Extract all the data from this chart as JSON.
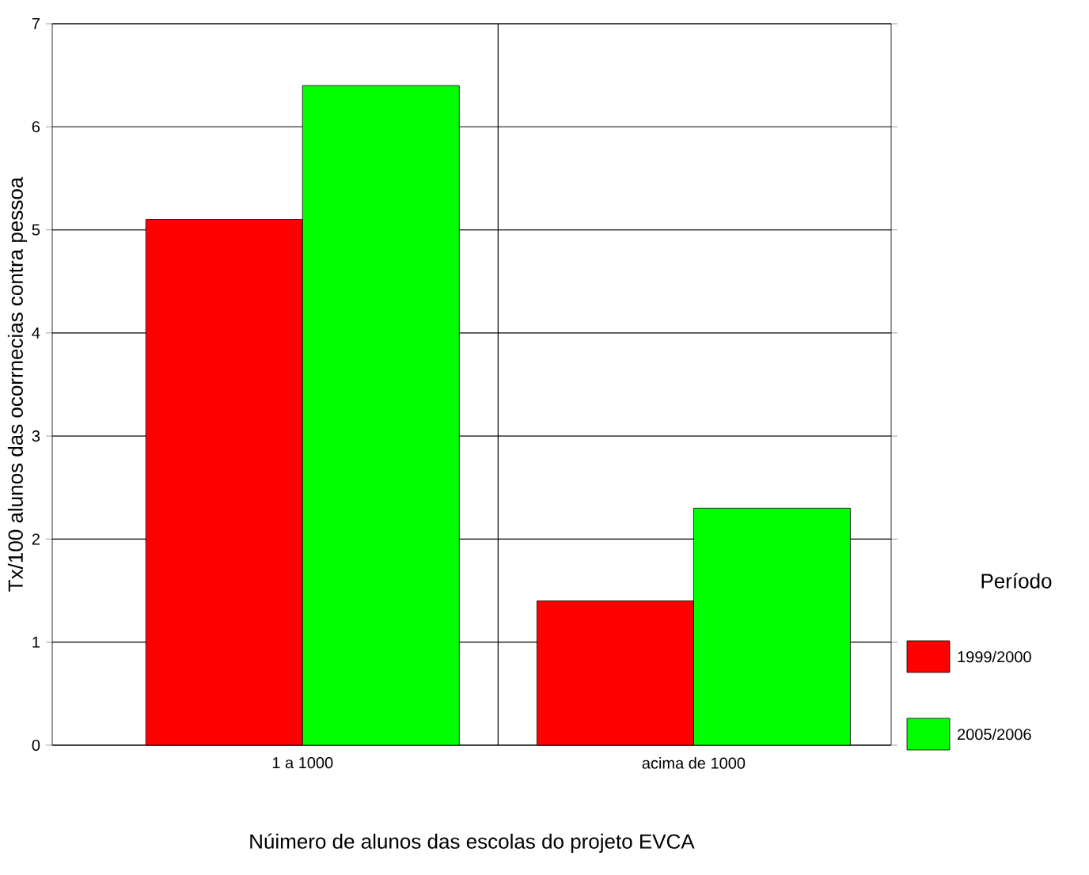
{
  "chart_data": {
    "type": "bar",
    "xlabel": "Núimero de alunos das escolas do projeto EVCA",
    "ylabel": "Tx/100 alunos das ocorrnecias contra pessoa",
    "legend_title": "Período",
    "categories": [
      "1 a 1000",
      "acima de 1000"
    ],
    "series": [
      {
        "name": "1999/2000",
        "color": "#ff0000",
        "values": [
          5.1,
          1.4
        ]
      },
      {
        "name": "2005/2006",
        "color": "#00ff00",
        "values": [
          6.4,
          2.3
        ]
      }
    ],
    "ylim": [
      0,
      7
    ],
    "yticks": [
      0,
      1,
      2,
      3,
      4,
      5,
      6,
      7
    ],
    "grid": true,
    "legend": "right"
  }
}
